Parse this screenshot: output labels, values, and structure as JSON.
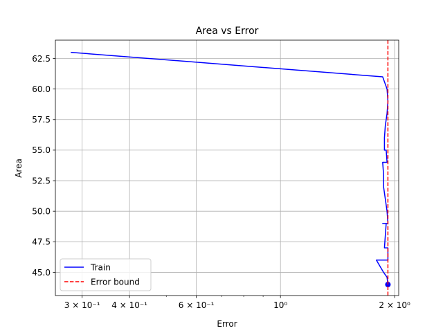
{
  "chart_data": {
    "type": "line",
    "title": "Area vs Error",
    "xlabel": "Error",
    "ylabel": "Area",
    "xscale": "log",
    "xlim": [
      0.255,
      2.05
    ],
    "ylim": [
      43.1,
      64.0
    ],
    "x_ticks_major": [
      {
        "value": 0.3,
        "label": "3 × 10⁻¹"
      },
      {
        "value": 0.4,
        "label": "4 × 10⁻¹"
      },
      {
        "value": 0.6,
        "label": "6 × 10⁻¹"
      },
      {
        "value": 1.0,
        "label": "10⁰"
      },
      {
        "value": 2.0,
        "label": "2 × 10⁰"
      }
    ],
    "x_ticks_minor": [
      0.5,
      0.7,
      0.8,
      0.9
    ],
    "y_ticks": [
      {
        "value": 45.0,
        "label": "45.0"
      },
      {
        "value": 47.5,
        "label": "47.5"
      },
      {
        "value": 50.0,
        "label": "50.0"
      },
      {
        "value": 52.5,
        "label": "52.5"
      },
      {
        "value": 55.0,
        "label": "55.0"
      },
      {
        "value": 57.5,
        "label": "57.5"
      },
      {
        "value": 60.0,
        "label": "60.0"
      },
      {
        "value": 62.5,
        "label": "62.5"
      }
    ],
    "grid": true,
    "legend_position": "lower-left",
    "series": [
      {
        "name": "Train",
        "color": "#0000ff",
        "style": "solid",
        "points": [
          [
            0.28,
            63.0
          ],
          [
            1.86,
            61.0
          ],
          [
            1.91,
            60.0
          ],
          [
            1.92,
            59.0
          ],
          [
            1.91,
            58.0
          ],
          [
            1.89,
            57.0
          ],
          [
            1.88,
            56.0
          ],
          [
            1.88,
            55.0
          ],
          [
            1.9,
            55.0
          ],
          [
            1.91,
            54.0
          ],
          [
            1.86,
            54.0
          ],
          [
            1.87,
            53.0
          ],
          [
            1.87,
            52.0
          ],
          [
            1.89,
            51.0
          ],
          [
            1.91,
            50.0
          ],
          [
            1.92,
            49.0
          ],
          [
            1.86,
            49.0
          ],
          [
            1.9,
            49.0
          ],
          [
            1.89,
            48.0
          ],
          [
            1.88,
            47.0
          ],
          [
            1.92,
            47.0
          ],
          [
            1.92,
            46.0
          ],
          [
            1.79,
            46.0
          ],
          [
            1.87,
            45.0
          ],
          [
            1.91,
            44.6
          ],
          [
            1.92,
            44.0
          ]
        ],
        "marker": {
          "x": 1.92,
          "y": 44.0
        }
      },
      {
        "name": "Error bound",
        "color": "#ff0000",
        "style": "dashed",
        "vline_x": 1.92
      }
    ]
  }
}
